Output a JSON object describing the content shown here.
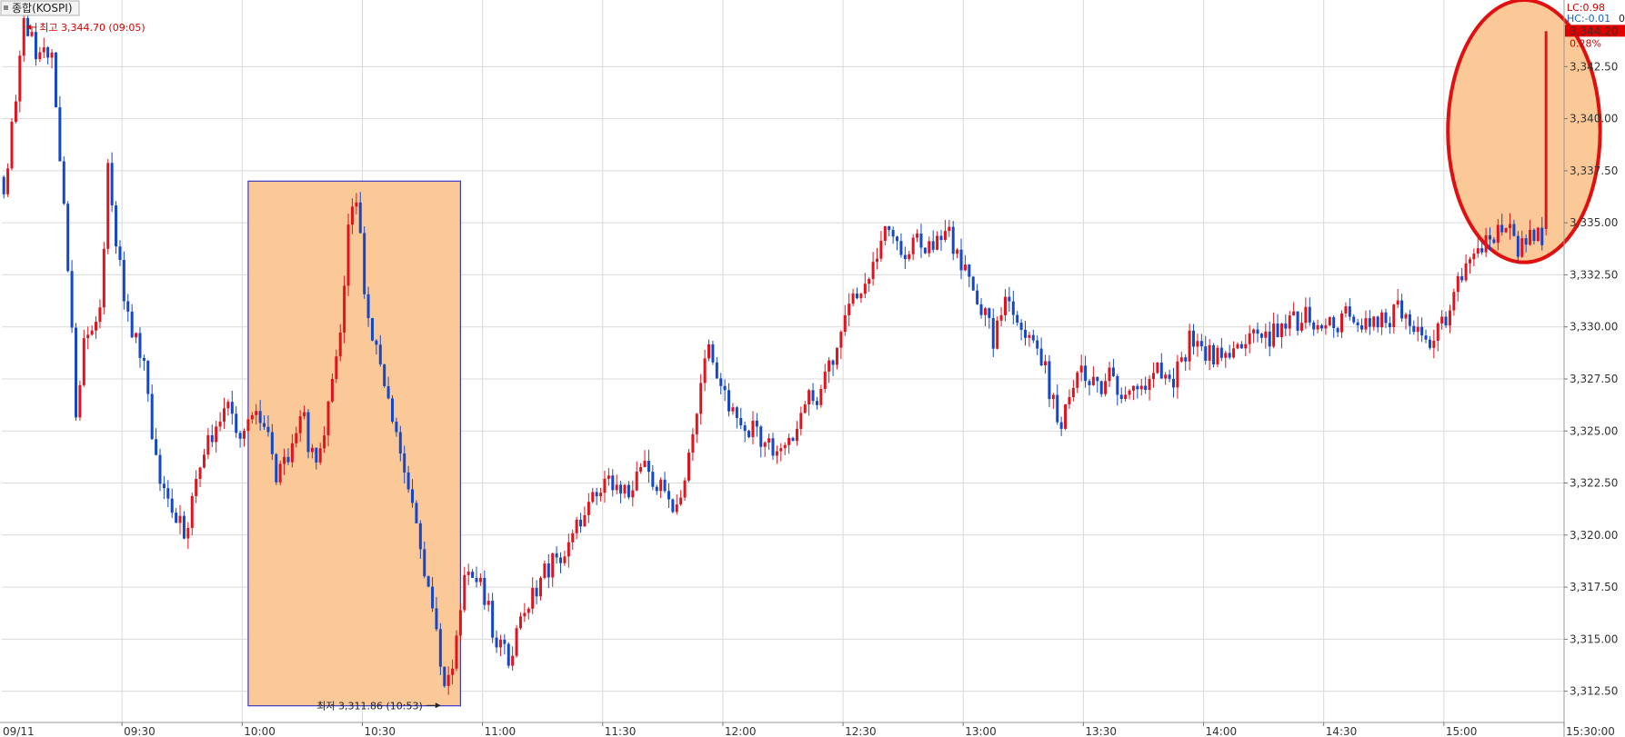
{
  "chart_data": {
    "type": "candlestick",
    "title": "종합(KOSPI)",
    "date_label": "09/11",
    "ylim": [
      3311.0,
      3345.7
    ],
    "y_ticks": [
      3312.5,
      3315.0,
      3317.5,
      3320.0,
      3322.5,
      3325.0,
      3327.5,
      3330.0,
      3332.5,
      3335.0,
      3337.5,
      3340.0,
      3342.5
    ],
    "y_tick_labels": [
      "3,312.50",
      "3,315.00",
      "3,317.50",
      "3,320.00",
      "3,322.50",
      "3,325.00",
      "3,327.50",
      "3,330.00",
      "3,332.50",
      "3,335.00",
      "3,337.50",
      "3,340.00",
      "3,342.50"
    ],
    "x_range_minutes": [
      0,
      390
    ],
    "x_ticks": [
      {
        "label": "09:30",
        "m": 30
      },
      {
        "label": "10:00",
        "m": 60
      },
      {
        "label": "10:30",
        "m": 90
      },
      {
        "label": "11:00",
        "m": 120
      },
      {
        "label": "11:30",
        "m": 150
      },
      {
        "label": "12:00",
        "m": 180
      },
      {
        "label": "12:30",
        "m": 210
      },
      {
        "label": "13:00",
        "m": 240
      },
      {
        "label": "13:30",
        "m": 270
      },
      {
        "label": "14:00",
        "m": 300
      },
      {
        "label": "14:30",
        "m": 330
      },
      {
        "label": "15:00",
        "m": 360
      },
      {
        "label": "15:30:00",
        "m": 390
      }
    ],
    "colors": {
      "up": "#e0141e",
      "down": "#1448c8",
      "grid": "#d9d9d9",
      "highlight": "#fbc898",
      "highlight_border": "#3b3bc0",
      "ellipse_border": "#e01010",
      "current_bg": "#e00000"
    },
    "waypoints": [
      [
        0,
        3336.8
      ],
      [
        2,
        3339.5
      ],
      [
        5,
        3344.5
      ],
      [
        9,
        3342.8
      ],
      [
        12,
        3343.4
      ],
      [
        14,
        3337.6
      ],
      [
        16,
        3333.2
      ],
      [
        18,
        3326.2
      ],
      [
        20,
        3329.0
      ],
      [
        24,
        3331.0
      ],
      [
        26,
        3337.4
      ],
      [
        28,
        3334.2
      ],
      [
        30,
        3331.3
      ],
      [
        35,
        3328.0
      ],
      [
        37,
        3324.8
      ],
      [
        40,
        3322.0
      ],
      [
        45,
        3320.0
      ],
      [
        50,
        3324.0
      ],
      [
        56,
        3326.5
      ],
      [
        59,
        3324.5
      ],
      [
        62,
        3325.5
      ],
      [
        66,
        3325.0
      ],
      [
        68,
        3322.5
      ],
      [
        72,
        3324.5
      ],
      [
        74,
        3325.8
      ],
      [
        78,
        3323.0
      ],
      [
        84,
        3330.0
      ],
      [
        86,
        3335.0
      ],
      [
        88,
        3336.0
      ],
      [
        91,
        3330.0
      ],
      [
        94,
        3328.5
      ],
      [
        97,
        3325.8
      ],
      [
        100,
        3323.5
      ],
      [
        104,
        3319.5
      ],
      [
        107,
        3316.5
      ],
      [
        110,
        3312.5
      ],
      [
        112,
        3313.8
      ],
      [
        114,
        3316.6
      ],
      [
        116,
        3318.5
      ],
      [
        119,
        3317.8
      ],
      [
        122,
        3315.5
      ],
      [
        126,
        3314.0
      ],
      [
        130,
        3316.5
      ],
      [
        134,
        3317.8
      ],
      [
        138,
        3319.0
      ],
      [
        142,
        3319.7
      ],
      [
        146,
        3321.8
      ],
      [
        150,
        3322.5
      ],
      [
        155,
        3322.0
      ],
      [
        160,
        3323.2
      ],
      [
        165,
        3322.0
      ],
      [
        168,
        3321.0
      ],
      [
        171,
        3323.5
      ],
      [
        174,
        3327.7
      ],
      [
        176,
        3329.7
      ],
      [
        179,
        3327.0
      ],
      [
        183,
        3325.5
      ],
      [
        187,
        3325.0
      ],
      [
        191,
        3324.5
      ],
      [
        195,
        3323.8
      ],
      [
        198,
        3325.0
      ],
      [
        201,
        3326.5
      ],
      [
        204,
        3327.0
      ],
      [
        207,
        3328.3
      ],
      [
        210,
        3330.5
      ],
      [
        213,
        3331.5
      ],
      [
        216,
        3332.2
      ],
      [
        219,
        3333.8
      ],
      [
        221,
        3334.8
      ],
      [
        224,
        3333.0
      ],
      [
        227,
        3334.5
      ],
      [
        231,
        3333.8
      ],
      [
        234,
        3334.2
      ],
      [
        237,
        3334.0
      ],
      [
        241,
        3332.3
      ],
      [
        244,
        3331.0
      ],
      [
        247,
        3329.5
      ],
      [
        250,
        3331.5
      ],
      [
        253,
        3330.0
      ],
      [
        255,
        3329.0
      ],
      [
        258,
        3329.3
      ],
      [
        261,
        3327.0
      ],
      [
        263,
        3325.0
      ],
      [
        266,
        3326.5
      ],
      [
        269,
        3327.7
      ],
      [
        273,
        3327.0
      ],
      [
        276,
        3327.6
      ],
      [
        280,
        3326.2
      ],
      [
        284,
        3327.3
      ],
      [
        288,
        3328.0
      ],
      [
        292,
        3327.3
      ],
      [
        296,
        3329.5
      ],
      [
        300,
        3328.8
      ],
      [
        305,
        3328.5
      ],
      [
        310,
        3329.7
      ],
      [
        315,
        3329.4
      ],
      [
        320,
        3330.0
      ],
      [
        325,
        3330.5
      ],
      [
        330,
        3330.2
      ],
      [
        335,
        3330.5
      ],
      [
        340,
        3330.3
      ],
      [
        345,
        3330.5
      ],
      [
        350,
        3330.6
      ],
      [
        354,
        3329.3
      ],
      [
        357,
        3329.6
      ],
      [
        360,
        3330.5
      ],
      [
        363,
        3332.0
      ],
      [
        366,
        3333.0
      ],
      [
        369,
        3334.0
      ],
      [
        372,
        3334.5
      ],
      [
        375,
        3335.0
      ],
      [
        378,
        3333.5
      ],
      [
        381,
        3334.5
      ],
      [
        384,
        3334.4
      ]
    ],
    "last_candle": {
      "open": 3334.7,
      "high": 3344.2,
      "low": 3334.4,
      "close": 3344.2
    },
    "annotations": {
      "high_label": "최고 3,344.70 (09:05)",
      "low_label": "최저 3,311.86 (10:53)",
      "lc_label": "LC:0.98",
      "hc_label": "HC:-0.01",
      "hc_suffix": "0",
      "current_price": "3,344.20",
      "change_pct": "0.28%"
    }
  }
}
